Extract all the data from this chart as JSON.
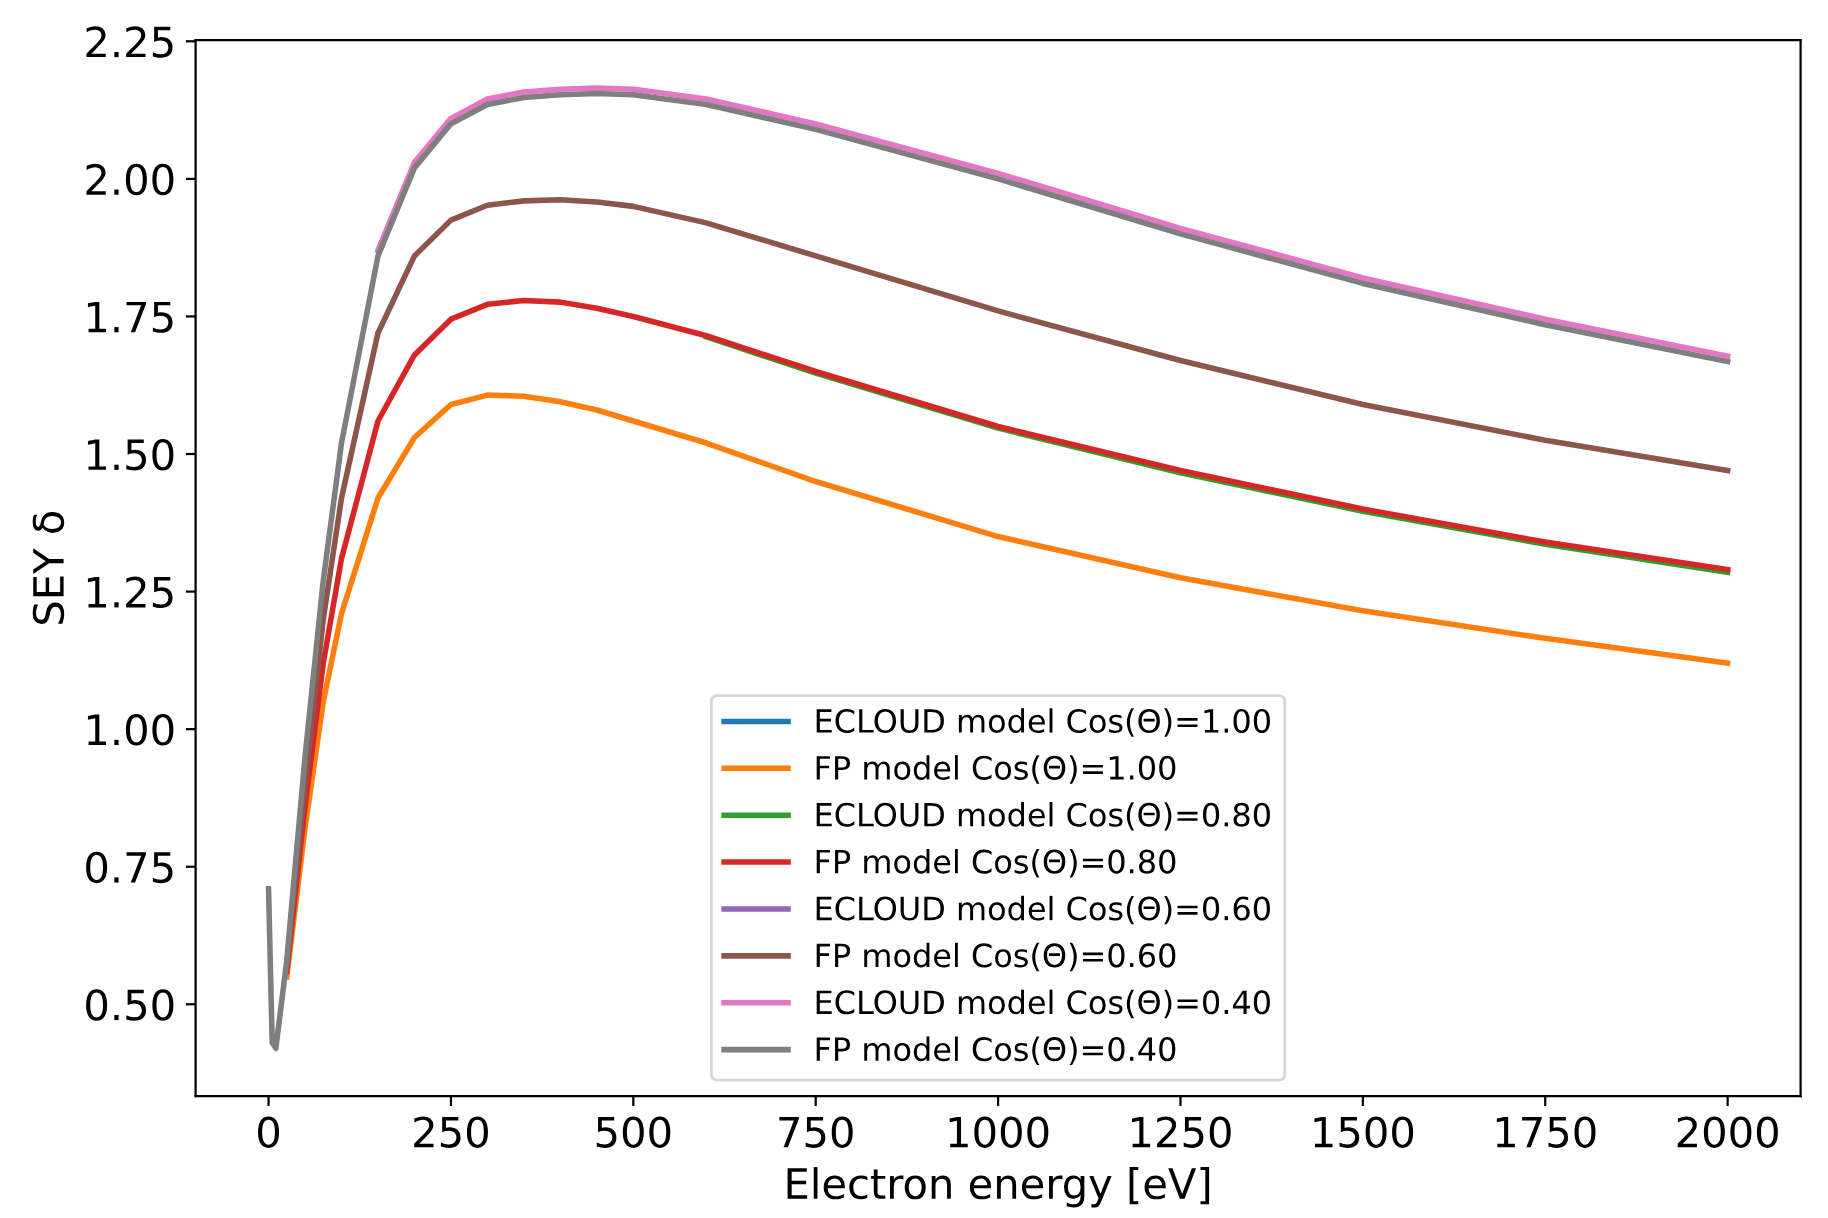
{
  "chart_data": {
    "type": "line",
    "xlabel": "Electron energy [eV]",
    "ylabel": "SEY δ",
    "x": [
      0,
      5,
      10,
      25,
      50,
      75,
      100,
      150,
      200,
      250,
      300,
      350,
      400,
      450,
      500,
      600,
      750,
      1000,
      1250,
      1500,
      1750,
      2000
    ],
    "series": [
      {
        "name": "ECLOUD model Cos(Θ)=1.00",
        "color": "#1f77b4",
        "values": [
          null,
          null,
          null,
          null,
          null,
          null,
          null,
          null,
          null,
          null,
          null,
          null,
          null,
          null,
          null,
          null,
          null,
          null,
          null,
          null,
          null,
          null
        ]
      },
      {
        "name": "FP model Cos(Θ)=1.00",
        "color": "#ff7f0e",
        "values": [
          null,
          null,
          null,
          0.55,
          0.82,
          1.05,
          1.21,
          1.42,
          1.53,
          1.59,
          1.607,
          1.605,
          1.595,
          1.58,
          1.56,
          1.52,
          1.45,
          1.35,
          1.275,
          1.215,
          1.165,
          1.12
        ]
      },
      {
        "name": "ECLOUD model Cos(Θ)=0.80",
        "color": "#2ca02c",
        "values": [
          null,
          null,
          null,
          null,
          null,
          null,
          null,
          null,
          null,
          null,
          null,
          null,
          null,
          null,
          null,
          1.713,
          1.647,
          1.547,
          1.466,
          1.396,
          1.336,
          1.285
        ]
      },
      {
        "name": "FP model Cos(Θ)=0.80",
        "color": "#d62728",
        "values": [
          null,
          null,
          null,
          0.56,
          0.86,
          1.12,
          1.31,
          1.56,
          1.68,
          1.745,
          1.772,
          1.779,
          1.776,
          1.765,
          1.75,
          1.715,
          1.65,
          1.55,
          1.47,
          1.4,
          1.34,
          1.29
        ]
      },
      {
        "name": "ECLOUD model Cos(Θ)=0.60",
        "color": "#9467bd",
        "values": [
          null,
          null,
          null,
          null,
          null,
          null,
          null,
          null,
          null,
          null,
          null,
          null,
          null,
          null,
          null,
          null,
          null,
          null,
          null,
          null,
          null,
          null
        ]
      },
      {
        "name": "FP model Cos(Θ)=0.60",
        "color": "#8c564b",
        "values": [
          null,
          null,
          null,
          0.57,
          0.9,
          1.2,
          1.42,
          1.72,
          1.86,
          1.925,
          1.952,
          1.96,
          1.962,
          1.958,
          1.95,
          1.92,
          1.86,
          1.76,
          1.67,
          1.59,
          1.525,
          1.47
        ]
      },
      {
        "name": "ECLOUD model Cos(Θ)=0.40",
        "color": "#e377c2",
        "values": [
          null,
          null,
          null,
          null,
          null,
          null,
          null,
          1.87,
          2.03,
          2.11,
          2.145,
          2.158,
          2.163,
          2.165,
          2.163,
          2.145,
          2.1,
          2.01,
          1.91,
          1.82,
          1.745,
          1.678
        ]
      },
      {
        "name": "FP model Cos(Θ)=0.40",
        "color": "#7f7f7f",
        "values": [
          0.71,
          0.43,
          0.42,
          0.58,
          0.95,
          1.27,
          1.52,
          1.86,
          2.02,
          2.1,
          2.135,
          2.148,
          2.153,
          2.155,
          2.153,
          2.135,
          2.09,
          2.0,
          1.9,
          1.81,
          1.735,
          1.668
        ]
      }
    ],
    "xlim": [
      -100,
      2100
    ],
    "ylim": [
      0.333,
      2.252
    ],
    "xticks": [
      0,
      250,
      500,
      750,
      1000,
      1250,
      1500,
      1750,
      2000
    ],
    "yticks": [
      {
        "value": 0.5,
        "label": "0.50"
      },
      {
        "value": 0.75,
        "label": "0.75"
      },
      {
        "value": 1.0,
        "label": "1.00"
      },
      {
        "value": 1.25,
        "label": "1.25"
      },
      {
        "value": 1.5,
        "label": "1.50"
      },
      {
        "value": 1.75,
        "label": "1.75"
      },
      {
        "value": 2.0,
        "label": "2.00"
      },
      {
        "value": 2.25,
        "label": "2.25"
      }
    ],
    "legend": "bottom",
    "grid": false,
    "marker": "none",
    "line_style": "solid"
  }
}
